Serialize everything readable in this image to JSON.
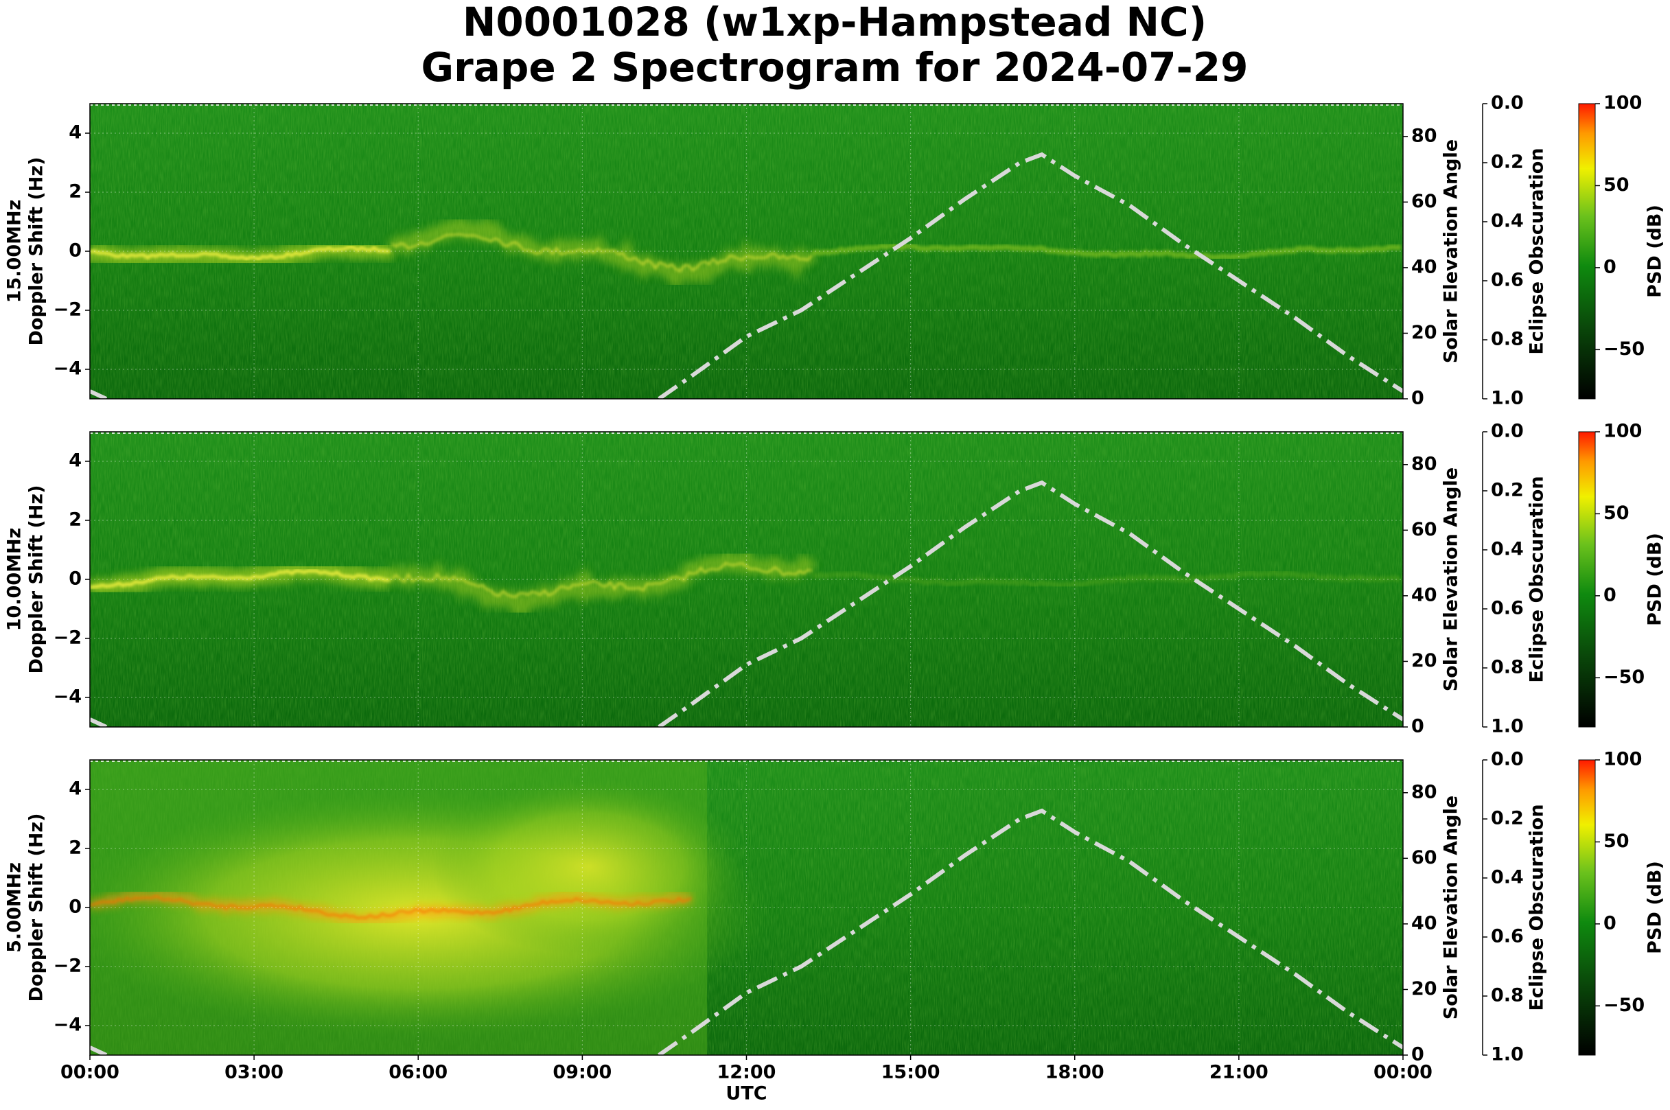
{
  "title": [
    "N0001028 (w1xp-Hampstead NC)",
    "Grape 2 Spectrogram for 2024-07-29"
  ],
  "chart_data": [
    {
      "type": "spectrogram",
      "ylabel": [
        "15.00MHz",
        "Doppler Shift (Hz)"
      ],
      "xlim": [
        0,
        24
      ],
      "ylim": [
        -5,
        5
      ],
      "yticks": [
        {
          "value": -4,
          "label": "−4"
        },
        {
          "value": -2,
          "label": "−2"
        },
        0,
        2,
        4
      ],
      "y2label": "Solar Elevation Angle",
      "y2lim": [
        0,
        90
      ],
      "y2ticks": [
        0,
        20,
        40,
        60,
        80
      ],
      "y3label": "Eclipse Obscuration",
      "y3lim": [
        1,
        0
      ],
      "y3ticks": [
        {
          "value": 0,
          "label": "0.0"
        },
        {
          "value": 0.2,
          "label": "0.2"
        },
        {
          "value": 0.4,
          "label": "0.4"
        },
        {
          "value": 0.6,
          "label": "0.6"
        },
        {
          "value": 0.8,
          "label": "0.8"
        },
        {
          "value": 1,
          "label": "1.0"
        }
      ],
      "colorbar_label": "PSD (dB)",
      "clim": [
        -80,
        100
      ],
      "cticks": [
        {
          "value": -50,
          "label": "−50"
        },
        0,
        50,
        100
      ],
      "grid": true,
      "x": [
        0,
        0.3,
        5,
        10.4,
        11,
        12,
        13,
        14,
        15,
        16,
        17,
        17.4,
        18,
        19,
        20,
        21,
        22,
        23,
        24
      ],
      "series": [
        {
          "color": "#d9d9d9",
          "axis": "y2",
          "values": [
            2.3,
            0,
            null,
            0,
            7,
            19,
            27,
            38,
            49,
            61,
            72,
            74.5,
            68,
            59,
            47,
            36,
            25,
            13,
            2.3
          ]
        }
      ]
    },
    {
      "type": "spectrogram",
      "ylabel": [
        "10.00MHz",
        "Doppler Shift (Hz)"
      ],
      "xlim": [
        0,
        24
      ],
      "ylim": [
        -5,
        5
      ],
      "yticks": [
        {
          "value": -4,
          "label": "−4"
        },
        {
          "value": -2,
          "label": "−2"
        },
        0,
        2,
        4
      ],
      "y2label": "Solar Elevation Angle",
      "y2lim": [
        0,
        90
      ],
      "y2ticks": [
        0,
        20,
        40,
        60,
        80
      ],
      "y3label": "Eclipse Obscuration",
      "y3lim": [
        1,
        0
      ],
      "y3ticks": [
        {
          "value": 0,
          "label": "0.0"
        },
        {
          "value": 0.2,
          "label": "0.2"
        },
        {
          "value": 0.4,
          "label": "0.4"
        },
        {
          "value": 0.6,
          "label": "0.6"
        },
        {
          "value": 0.8,
          "label": "0.8"
        },
        {
          "value": 1,
          "label": "1.0"
        }
      ],
      "colorbar_label": "PSD (dB)",
      "clim": [
        -80,
        100
      ],
      "cticks": [
        {
          "value": -50,
          "label": "−50"
        },
        0,
        50,
        100
      ],
      "grid": true,
      "x": [
        0,
        0.3,
        5,
        10.4,
        11,
        12,
        13,
        14,
        15,
        16,
        17,
        17.4,
        18,
        19,
        20,
        21,
        22,
        23,
        24
      ],
      "series": [
        {
          "color": "#d9d9d9",
          "axis": "y2",
          "values": [
            2.3,
            0,
            null,
            0,
            7,
            19,
            27,
            38,
            49,
            61,
            72,
            74.5,
            68,
            59,
            47,
            36,
            25,
            13,
            2.3
          ]
        }
      ]
    },
    {
      "type": "spectrogram",
      "ylabel": [
        "5.00MHz",
        "Doppler Shift (Hz)"
      ],
      "xlabel": "UTC",
      "xlim": [
        0,
        24
      ],
      "xticks": [
        {
          "value": 0,
          "label": "00:00"
        },
        {
          "value": 3,
          "label": "03:00"
        },
        {
          "value": 6,
          "label": "06:00"
        },
        {
          "value": 9,
          "label": "09:00"
        },
        {
          "value": 12,
          "label": "12:00"
        },
        {
          "value": 15,
          "label": "15:00"
        },
        {
          "value": 18,
          "label": "18:00"
        },
        {
          "value": 21,
          "label": "21:00"
        },
        {
          "value": 24,
          "label": "00:00"
        }
      ],
      "ylim": [
        -5,
        5
      ],
      "yticks": [
        {
          "value": -4,
          "label": "−4"
        },
        {
          "value": -2,
          "label": "−2"
        },
        0,
        2,
        4
      ],
      "y2label": "Solar Elevation Angle",
      "y2lim": [
        0,
        90
      ],
      "y2ticks": [
        0,
        20,
        40,
        60,
        80
      ],
      "y3label": "Eclipse Obscuration",
      "y3lim": [
        1,
        0
      ],
      "y3ticks": [
        {
          "value": 0,
          "label": "0.0"
        },
        {
          "value": 0.2,
          "label": "0.2"
        },
        {
          "value": 0.4,
          "label": "0.4"
        },
        {
          "value": 0.6,
          "label": "0.6"
        },
        {
          "value": 0.8,
          "label": "0.8"
        },
        {
          "value": 1,
          "label": "1.0"
        }
      ],
      "colorbar_label": "PSD (dB)",
      "clim": [
        -80,
        100
      ],
      "cticks": [
        {
          "value": -50,
          "label": "−50"
        },
        0,
        50,
        100
      ],
      "grid": true,
      "x": [
        0,
        0.3,
        5,
        10.4,
        11,
        12,
        13,
        14,
        15,
        16,
        17,
        17.4,
        18,
        19,
        20,
        21,
        22,
        23,
        24
      ],
      "series": [
        {
          "color": "#d9d9d9",
          "axis": "y2",
          "values": [
            2.3,
            0,
            null,
            0,
            7,
            19,
            27,
            38,
            49,
            61,
            72,
            74.5,
            68,
            59,
            47,
            36,
            25,
            13,
            2.3
          ]
        }
      ]
    }
  ]
}
